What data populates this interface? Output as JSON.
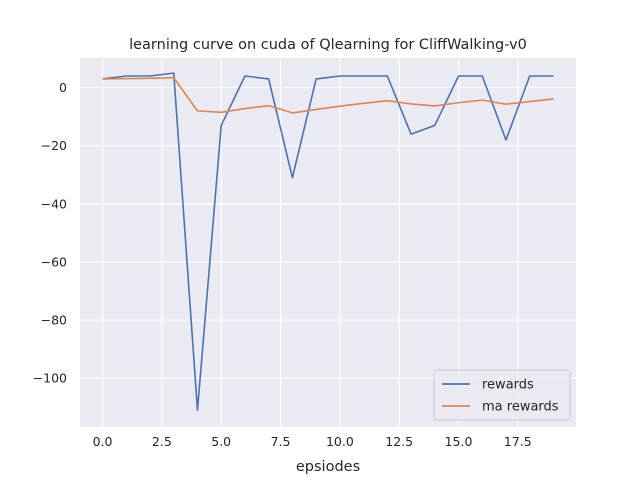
{
  "chart_data": {
    "type": "line",
    "title": "learning curve on cuda of Qlearning for CliffWalking-v0",
    "xlabel": "epsiodes",
    "ylabel": "",
    "x": [
      0,
      1,
      2,
      3,
      4,
      5,
      6,
      7,
      8,
      9,
      10,
      11,
      12,
      13,
      14,
      15,
      16,
      17,
      18,
      19
    ],
    "xlim": [
      -0.95,
      19.95
    ],
    "ylim": [
      -116.8,
      10.2
    ],
    "x_ticks": [
      0,
      2.5,
      5,
      7.5,
      10,
      12.5,
      15,
      17.5
    ],
    "x_tick_labels": [
      "0.0",
      "2.5",
      "5.0",
      "7.5",
      "10.0",
      "12.5",
      "15.0",
      "17.5"
    ],
    "y_ticks": [
      0,
      -20,
      -40,
      -60,
      -80,
      -100
    ],
    "y_tick_labels": [
      "0",
      "−20",
      "−40",
      "−60",
      "−80",
      "−100"
    ],
    "grid": true,
    "legend_position": "lower-right",
    "series": [
      {
        "name": "rewards",
        "color": "#4c72b0",
        "values": [
          3,
          4,
          4,
          5,
          -111,
          -13,
          4,
          3,
          -31,
          3,
          4,
          4,
          4,
          -16,
          -13,
          4,
          4,
          -18,
          4,
          4
        ]
      },
      {
        "name": "ma rewards",
        "color": "#dd8452",
        "values": [
          3,
          3.1,
          3.2,
          3.4,
          -8,
          -8.5,
          -7.2,
          -6.2,
          -8.7,
          -7.5,
          -6.4,
          -5.4,
          -4.5,
          -5.6,
          -6.3,
          -5.2,
          -4.3,
          -5.7,
          -4.8,
          -3.9
        ]
      }
    ]
  }
}
